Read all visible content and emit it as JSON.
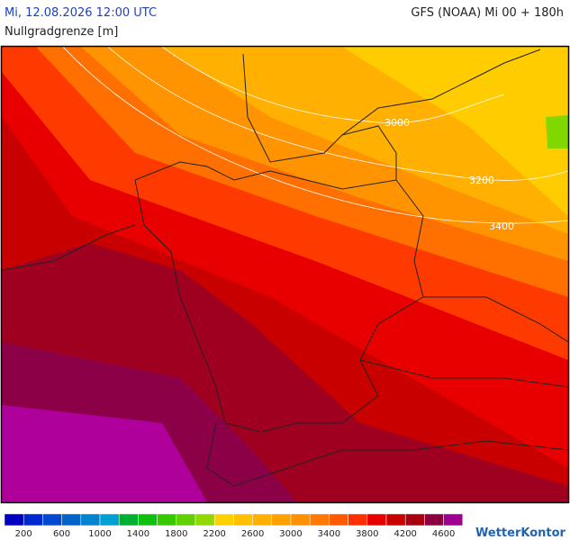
{
  "header": {
    "datetime": "Mi, 12.08.2026 12:00 UTC",
    "model": "GFS (NOAA) Mi 00 + 180h",
    "parameter": "Nullgradgrenze [m]"
  },
  "map": {
    "contour_labels": [
      "3000",
      "3200",
      "3400"
    ]
  },
  "legend": {
    "colors": [
      "#0000c0",
      "#0028d0",
      "#0048d0",
      "#0064c8",
      "#0084d0",
      "#00a0d0",
      "#00b030",
      "#10c010",
      "#38c800",
      "#60d000",
      "#90d800",
      "#ffd000",
      "#ffc000",
      "#ffb000",
      "#ffa000",
      "#ff9000",
      "#ff7800",
      "#ff5a00",
      "#ff3000",
      "#e80000",
      "#c80000",
      "#a80010",
      "#8c0040",
      "#a00090"
    ],
    "labels": [
      "200",
      "600",
      "1000",
      "1400",
      "1800",
      "2200",
      "2600",
      "3000",
      "3400",
      "3800",
      "4200",
      "4600"
    ]
  },
  "logo": "WetterKontor"
}
